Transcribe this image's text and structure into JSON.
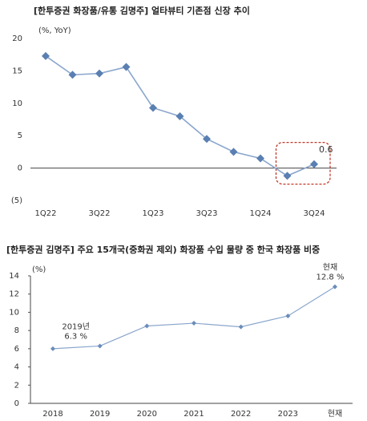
{
  "chart_data": [
    {
      "type": "line",
      "title": "[한투증권 화장품/유통 김명주] 얼타뷰티 기존점 신장 추이",
      "unit": "(%, YoY)",
      "categories": [
        "1Q22",
        null,
        "3Q22",
        null,
        "1Q23",
        null,
        "3Q23",
        null,
        "1Q24",
        null,
        "3Q24"
      ],
      "values": [
        17.3,
        14.4,
        14.6,
        15.6,
        9.3,
        8.0,
        4.5,
        2.5,
        1.5,
        -1.2,
        0.6
      ],
      "value_labels": [
        null,
        null,
        null,
        null,
        null,
        null,
        null,
        null,
        null,
        null,
        "0.6"
      ],
      "color": "#8aa6cc",
      "marker_color": "#5a7fb2",
      "ylim": [
        -5,
        20
      ],
      "yticks": [
        {
          "value": -5,
          "label": "(5)"
        },
        0,
        5,
        10,
        15,
        20
      ]
    },
    {
      "type": "line",
      "title": "[한투증권 김명주] 주요 15개국(중화권 제외) 화장품 수입 물량 중 한국 화장품 비중",
      "unit": "(%)",
      "categories": [
        "2018",
        "2019",
        "2020",
        "2021",
        "2022",
        "2023",
        "현재"
      ],
      "values": [
        6.0,
        6.3,
        8.5,
        8.8,
        8.4,
        9.6,
        12.8
      ],
      "value_labels": [
        null,
        "6.3 %",
        null,
        null,
        null,
        null,
        "12.8 %"
      ],
      "annotations": [
        "2019년",
        "현재"
      ],
      "color": "#8aa6cc",
      "marker_color": "#6a8cba",
      "ylim": [
        0,
        14
      ],
      "yticks": [
        0,
        2,
        4,
        6,
        8,
        10,
        12,
        14
      ]
    }
  ]
}
